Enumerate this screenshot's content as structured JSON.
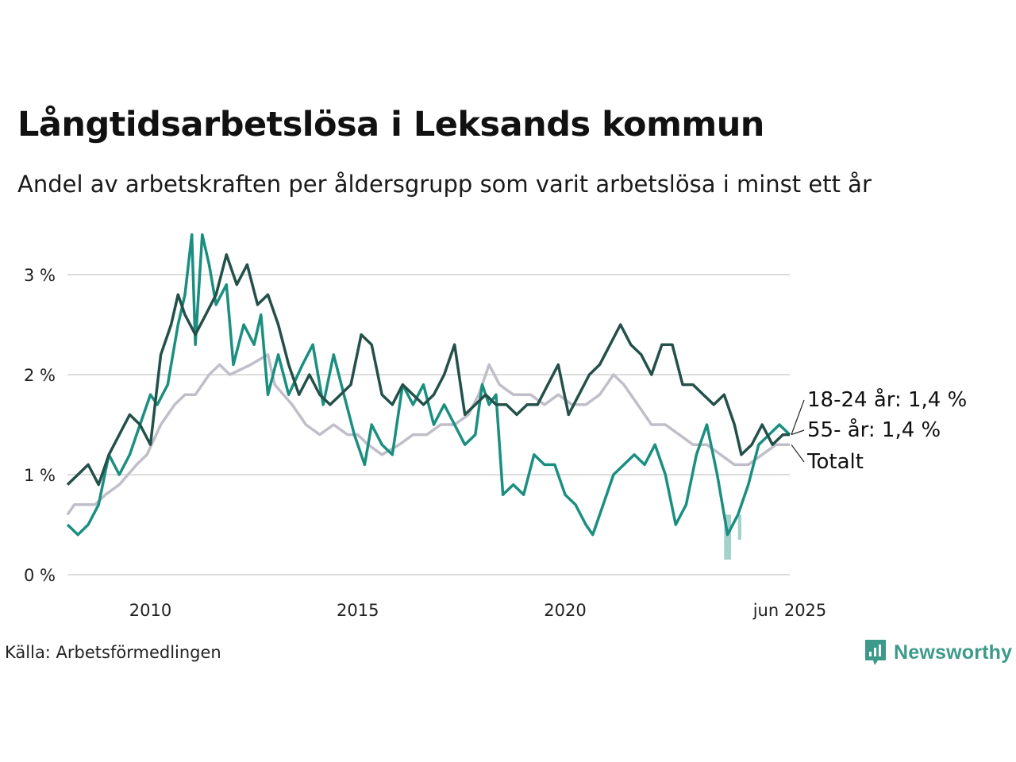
{
  "title": "Långtidsarbetslösa i Leksands kommun",
  "subtitle": "Andel av arbetskraften per åldersgrupp som varit arbetslösa i minst ett år",
  "source": "Källa: Arbetsförmedlingen",
  "brand": "Newsworthy",
  "colors": {
    "youth": "#1a8f80",
    "senior": "#24504a",
    "total": "#c0bec8",
    "grid": "#dddddd",
    "brand": "#3d9a8a"
  },
  "chart_data": {
    "type": "line",
    "x_domain": [
      "2008-01",
      "2025-06"
    ],
    "ylim": [
      0,
      3.5
    ],
    "y_ticks": [
      0,
      1,
      2,
      3
    ],
    "y_tick_labels": [
      "0 %",
      "1 %",
      "2 %",
      "3 %"
    ],
    "x_ticks": [
      {
        "date": "2010-01",
        "label": "2010"
      },
      {
        "date": "2015-01",
        "label": "2015"
      },
      {
        "date": "2020-01",
        "label": "2020"
      },
      {
        "date": "2025-06",
        "label": "jun 2025"
      }
    ],
    "grid": true,
    "series": [
      {
        "key": "total",
        "name": "Totalt",
        "end_label": "Totalt",
        "points": [
          [
            "2008-01",
            0.6
          ],
          [
            "2008-03",
            0.7
          ],
          [
            "2008-09",
            0.7
          ],
          [
            "2008-12",
            0.8
          ],
          [
            "2009-04",
            0.9
          ],
          [
            "2009-09",
            1.1
          ],
          [
            "2009-12",
            1.2
          ],
          [
            "2010-04",
            1.5
          ],
          [
            "2010-08",
            1.7
          ],
          [
            "2010-11",
            1.8
          ],
          [
            "2011-02",
            1.8
          ],
          [
            "2011-06",
            2.0
          ],
          [
            "2011-09",
            2.1
          ],
          [
            "2011-12",
            2.0
          ],
          [
            "2012-06",
            2.1
          ],
          [
            "2012-11",
            2.2
          ],
          [
            "2013-01",
            1.9
          ],
          [
            "2013-06",
            1.7
          ],
          [
            "2013-10",
            1.5
          ],
          [
            "2014-02",
            1.4
          ],
          [
            "2014-06",
            1.5
          ],
          [
            "2014-10",
            1.4
          ],
          [
            "2015-01",
            1.4
          ],
          [
            "2015-04",
            1.3
          ],
          [
            "2015-08",
            1.2
          ],
          [
            "2016-01",
            1.3
          ],
          [
            "2016-05",
            1.4
          ],
          [
            "2016-09",
            1.4
          ],
          [
            "2017-01",
            1.5
          ],
          [
            "2017-05",
            1.5
          ],
          [
            "2017-09",
            1.6
          ],
          [
            "2017-12",
            1.8
          ],
          [
            "2018-03",
            2.1
          ],
          [
            "2018-06",
            1.9
          ],
          [
            "2018-10",
            1.8
          ],
          [
            "2019-03",
            1.8
          ],
          [
            "2019-07",
            1.7
          ],
          [
            "2019-11",
            1.8
          ],
          [
            "2020-03",
            1.7
          ],
          [
            "2020-07",
            1.7
          ],
          [
            "2020-11",
            1.8
          ],
          [
            "2021-03",
            2.0
          ],
          [
            "2021-06",
            1.9
          ],
          [
            "2021-10",
            1.7
          ],
          [
            "2022-02",
            1.5
          ],
          [
            "2022-06",
            1.5
          ],
          [
            "2022-10",
            1.4
          ],
          [
            "2023-02",
            1.3
          ],
          [
            "2023-06",
            1.3
          ],
          [
            "2023-10",
            1.2
          ],
          [
            "2024-02",
            1.1
          ],
          [
            "2024-06",
            1.1
          ],
          [
            "2024-10",
            1.2
          ],
          [
            "2025-02",
            1.3
          ],
          [
            "2025-06",
            1.3
          ]
        ]
      },
      {
        "key": "youth",
        "name": "18-24 år",
        "end_label": "18-24 år: 1,4 %",
        "points": [
          [
            "2008-01",
            0.5
          ],
          [
            "2008-04",
            0.4
          ],
          [
            "2008-07",
            0.5
          ],
          [
            "2008-10",
            0.7
          ],
          [
            "2009-01",
            1.2
          ],
          [
            "2009-04",
            1.0
          ],
          [
            "2009-07",
            1.2
          ],
          [
            "2009-10",
            1.5
          ],
          [
            "2010-01",
            1.8
          ],
          [
            "2010-03",
            1.7
          ],
          [
            "2010-06",
            1.9
          ],
          [
            "2010-09",
            2.5
          ],
          [
            "2010-11",
            2.8
          ],
          [
            "2011-01",
            3.4
          ],
          [
            "2011-02",
            2.3
          ],
          [
            "2011-04",
            3.4
          ],
          [
            "2011-06",
            3.1
          ],
          [
            "2011-08",
            2.7
          ],
          [
            "2011-11",
            2.9
          ],
          [
            "2012-01",
            2.1
          ],
          [
            "2012-04",
            2.5
          ],
          [
            "2012-07",
            2.3
          ],
          [
            "2012-09",
            2.6
          ],
          [
            "2012-11",
            1.8
          ],
          [
            "2013-02",
            2.2
          ],
          [
            "2013-05",
            1.8
          ],
          [
            "2013-09",
            2.1
          ],
          [
            "2013-12",
            2.3
          ],
          [
            "2014-03",
            1.7
          ],
          [
            "2014-06",
            2.2
          ],
          [
            "2014-09",
            1.8
          ],
          [
            "2014-12",
            1.4
          ],
          [
            "2015-03",
            1.1
          ],
          [
            "2015-05",
            1.5
          ],
          [
            "2015-08",
            1.3
          ],
          [
            "2015-11",
            1.2
          ],
          [
            "2016-02",
            1.9
          ],
          [
            "2016-05",
            1.7
          ],
          [
            "2016-08",
            1.9
          ],
          [
            "2016-11",
            1.5
          ],
          [
            "2017-02",
            1.7
          ],
          [
            "2017-05",
            1.5
          ],
          [
            "2017-08",
            1.3
          ],
          [
            "2017-11",
            1.4
          ],
          [
            "2018-01",
            1.9
          ],
          [
            "2018-03",
            1.7
          ],
          [
            "2018-05",
            1.8
          ],
          [
            "2018-07",
            0.8
          ],
          [
            "2018-10",
            0.9
          ],
          [
            "2019-01",
            0.8
          ],
          [
            "2019-04",
            1.2
          ],
          [
            "2019-07",
            1.1
          ],
          [
            "2019-10",
            1.1
          ],
          [
            "2020-01",
            0.8
          ],
          [
            "2020-04",
            0.7
          ],
          [
            "2020-07",
            0.5
          ],
          [
            "2020-09",
            0.4
          ],
          [
            "2020-12",
            0.7
          ],
          [
            "2021-03",
            1.0
          ],
          [
            "2021-06",
            1.1
          ],
          [
            "2021-09",
            1.2
          ],
          [
            "2021-12",
            1.1
          ],
          [
            "2022-03",
            1.3
          ],
          [
            "2022-06",
            1.0
          ],
          [
            "2022-09",
            0.5
          ],
          [
            "2022-12",
            0.7
          ],
          [
            "2023-03",
            1.2
          ],
          [
            "2023-06",
            1.5
          ],
          [
            "2023-09",
            1.0
          ],
          [
            "2023-12",
            0.4
          ],
          [
            "2024-03",
            0.6
          ],
          [
            "2024-06",
            0.9
          ],
          [
            "2024-09",
            1.3
          ],
          [
            "2024-12",
            1.4
          ],
          [
            "2025-03",
            1.5
          ],
          [
            "2025-06",
            1.4
          ]
        ]
      },
      {
        "key": "senior",
        "name": "55- år",
        "end_label": "55- år: 1,4 %",
        "points": [
          [
            "2008-01",
            0.9
          ],
          [
            "2008-04",
            1.0
          ],
          [
            "2008-07",
            1.1
          ],
          [
            "2008-10",
            0.9
          ],
          [
            "2009-01",
            1.2
          ],
          [
            "2009-04",
            1.4
          ],
          [
            "2009-07",
            1.6
          ],
          [
            "2009-10",
            1.5
          ],
          [
            "2010-01",
            1.3
          ],
          [
            "2010-04",
            2.2
          ],
          [
            "2010-07",
            2.5
          ],
          [
            "2010-09",
            2.8
          ],
          [
            "2010-11",
            2.6
          ],
          [
            "2011-02",
            2.4
          ],
          [
            "2011-05",
            2.6
          ],
          [
            "2011-08",
            2.8
          ],
          [
            "2011-11",
            3.2
          ],
          [
            "2012-02",
            2.9
          ],
          [
            "2012-05",
            3.1
          ],
          [
            "2012-08",
            2.7
          ],
          [
            "2012-11",
            2.8
          ],
          [
            "2013-02",
            2.5
          ],
          [
            "2013-05",
            2.1
          ],
          [
            "2013-08",
            1.8
          ],
          [
            "2013-11",
            2.0
          ],
          [
            "2014-02",
            1.8
          ],
          [
            "2014-05",
            1.7
          ],
          [
            "2014-08",
            1.8
          ],
          [
            "2014-11",
            1.9
          ],
          [
            "2015-02",
            2.4
          ],
          [
            "2015-05",
            2.3
          ],
          [
            "2015-08",
            1.8
          ],
          [
            "2015-11",
            1.7
          ],
          [
            "2016-02",
            1.9
          ],
          [
            "2016-05",
            1.8
          ],
          [
            "2016-08",
            1.7
          ],
          [
            "2016-11",
            1.8
          ],
          [
            "2017-02",
            2.0
          ],
          [
            "2017-05",
            2.3
          ],
          [
            "2017-08",
            1.6
          ],
          [
            "2017-11",
            1.7
          ],
          [
            "2018-02",
            1.8
          ],
          [
            "2018-05",
            1.7
          ],
          [
            "2018-08",
            1.7
          ],
          [
            "2018-11",
            1.6
          ],
          [
            "2019-02",
            1.7
          ],
          [
            "2019-05",
            1.7
          ],
          [
            "2019-08",
            1.9
          ],
          [
            "2019-11",
            2.1
          ],
          [
            "2020-02",
            1.6
          ],
          [
            "2020-05",
            1.8
          ],
          [
            "2020-08",
            2.0
          ],
          [
            "2020-11",
            2.1
          ],
          [
            "2021-02",
            2.3
          ],
          [
            "2021-05",
            2.5
          ],
          [
            "2021-08",
            2.3
          ],
          [
            "2021-11",
            2.2
          ],
          [
            "2022-02",
            2.0
          ],
          [
            "2022-05",
            2.3
          ],
          [
            "2022-08",
            2.3
          ],
          [
            "2022-11",
            1.9
          ],
          [
            "2023-02",
            1.9
          ],
          [
            "2023-05",
            1.8
          ],
          [
            "2023-08",
            1.7
          ],
          [
            "2023-11",
            1.8
          ],
          [
            "2024-02",
            1.5
          ],
          [
            "2024-04",
            1.2
          ],
          [
            "2024-07",
            1.3
          ],
          [
            "2024-10",
            1.5
          ],
          [
            "2025-01",
            1.3
          ],
          [
            "2025-04",
            1.4
          ],
          [
            "2025-06",
            1.4
          ]
        ]
      }
    ],
    "uncertainty_band": {
      "series": "youth",
      "segments": [
        {
          "from": "2023-11",
          "to": "2024-01",
          "low": 0.15,
          "high": 0.6
        },
        {
          "from": "2024-03",
          "to": "2024-04",
          "low": 0.35,
          "high": 0.6
        }
      ]
    }
  }
}
